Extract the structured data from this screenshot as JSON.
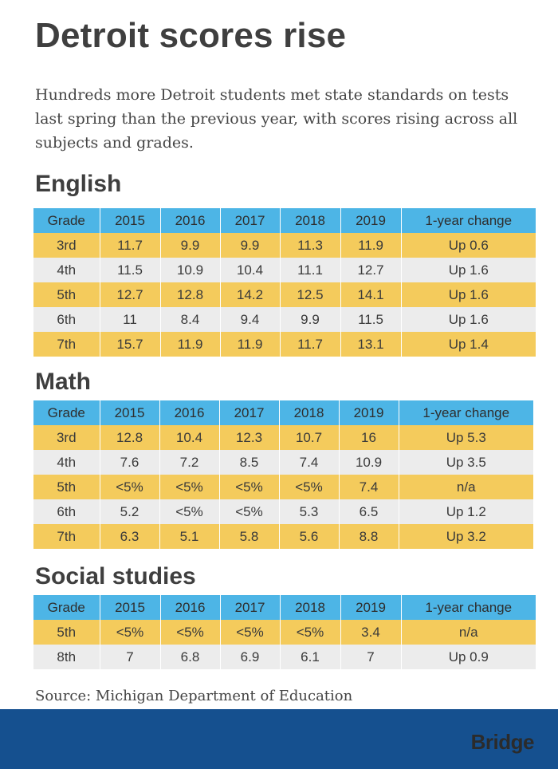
{
  "title": "Detroit scores rise",
  "subtitle": "Hundreds more Detroit students met state standards on tests last spring than the previous year, with scores rising across all subjects and grades.",
  "source": "Source: Michigan Department of Education",
  "logo": "Bridge",
  "colors": {
    "header": "#4db5e6",
    "row_odd": "#f4cb5c",
    "row_even": "#ececec",
    "footer": "#15508f"
  },
  "chart_data": [
    {
      "type": "table",
      "title": "English",
      "columns": [
        "Grade",
        "2015",
        "2016",
        "2017",
        "2018",
        "2019",
        "1-year change"
      ],
      "rows": [
        [
          "3rd",
          "11.7",
          "9.9",
          "9.9",
          "11.3",
          "11.9",
          "Up 0.6"
        ],
        [
          "4th",
          "11.5",
          "10.9",
          "10.4",
          "11.1",
          "12.7",
          "Up 1.6"
        ],
        [
          "5th",
          "12.7",
          "12.8",
          "14.2",
          "12.5",
          "14.1",
          "Up 1.6"
        ],
        [
          "6th",
          "11",
          "8.4",
          "9.4",
          "9.9",
          "11.5",
          "Up 1.6"
        ],
        [
          "7th",
          "15.7",
          "11.9",
          "11.9",
          "11.7",
          "13.1",
          "Up 1.4"
        ]
      ]
    },
    {
      "type": "table",
      "title": "Math",
      "columns": [
        "Grade",
        "2015",
        "2016",
        "2017",
        "2018",
        "2019",
        "1-year change"
      ],
      "rows": [
        [
          "3rd",
          "12.8",
          "10.4",
          "12.3",
          "10.7",
          "16",
          "Up 5.3"
        ],
        [
          "4th",
          "7.6",
          "7.2",
          "8.5",
          "7.4",
          "10.9",
          "Up 3.5"
        ],
        [
          "5th",
          "<5%",
          "<5%",
          "<5%",
          "<5%",
          "7.4",
          "n/a"
        ],
        [
          "6th",
          "5.2",
          "<5%",
          "<5%",
          "5.3",
          "6.5",
          "Up 1.2"
        ],
        [
          "7th",
          "6.3",
          "5.1",
          "5.8",
          "5.6",
          "8.8",
          "Up 3.2"
        ]
      ]
    },
    {
      "type": "table",
      "title": "Social studies",
      "columns": [
        "Grade",
        "2015",
        "2016",
        "2017",
        "2018",
        "2019",
        "1-year change"
      ],
      "rows": [
        [
          "5th",
          "<5%",
          "<5%",
          "<5%",
          "<5%",
          "3.4",
          "n/a"
        ],
        [
          "8th",
          "7",
          "6.8",
          "6.9",
          "6.1",
          "7",
          "Up 0.9"
        ]
      ]
    }
  ]
}
